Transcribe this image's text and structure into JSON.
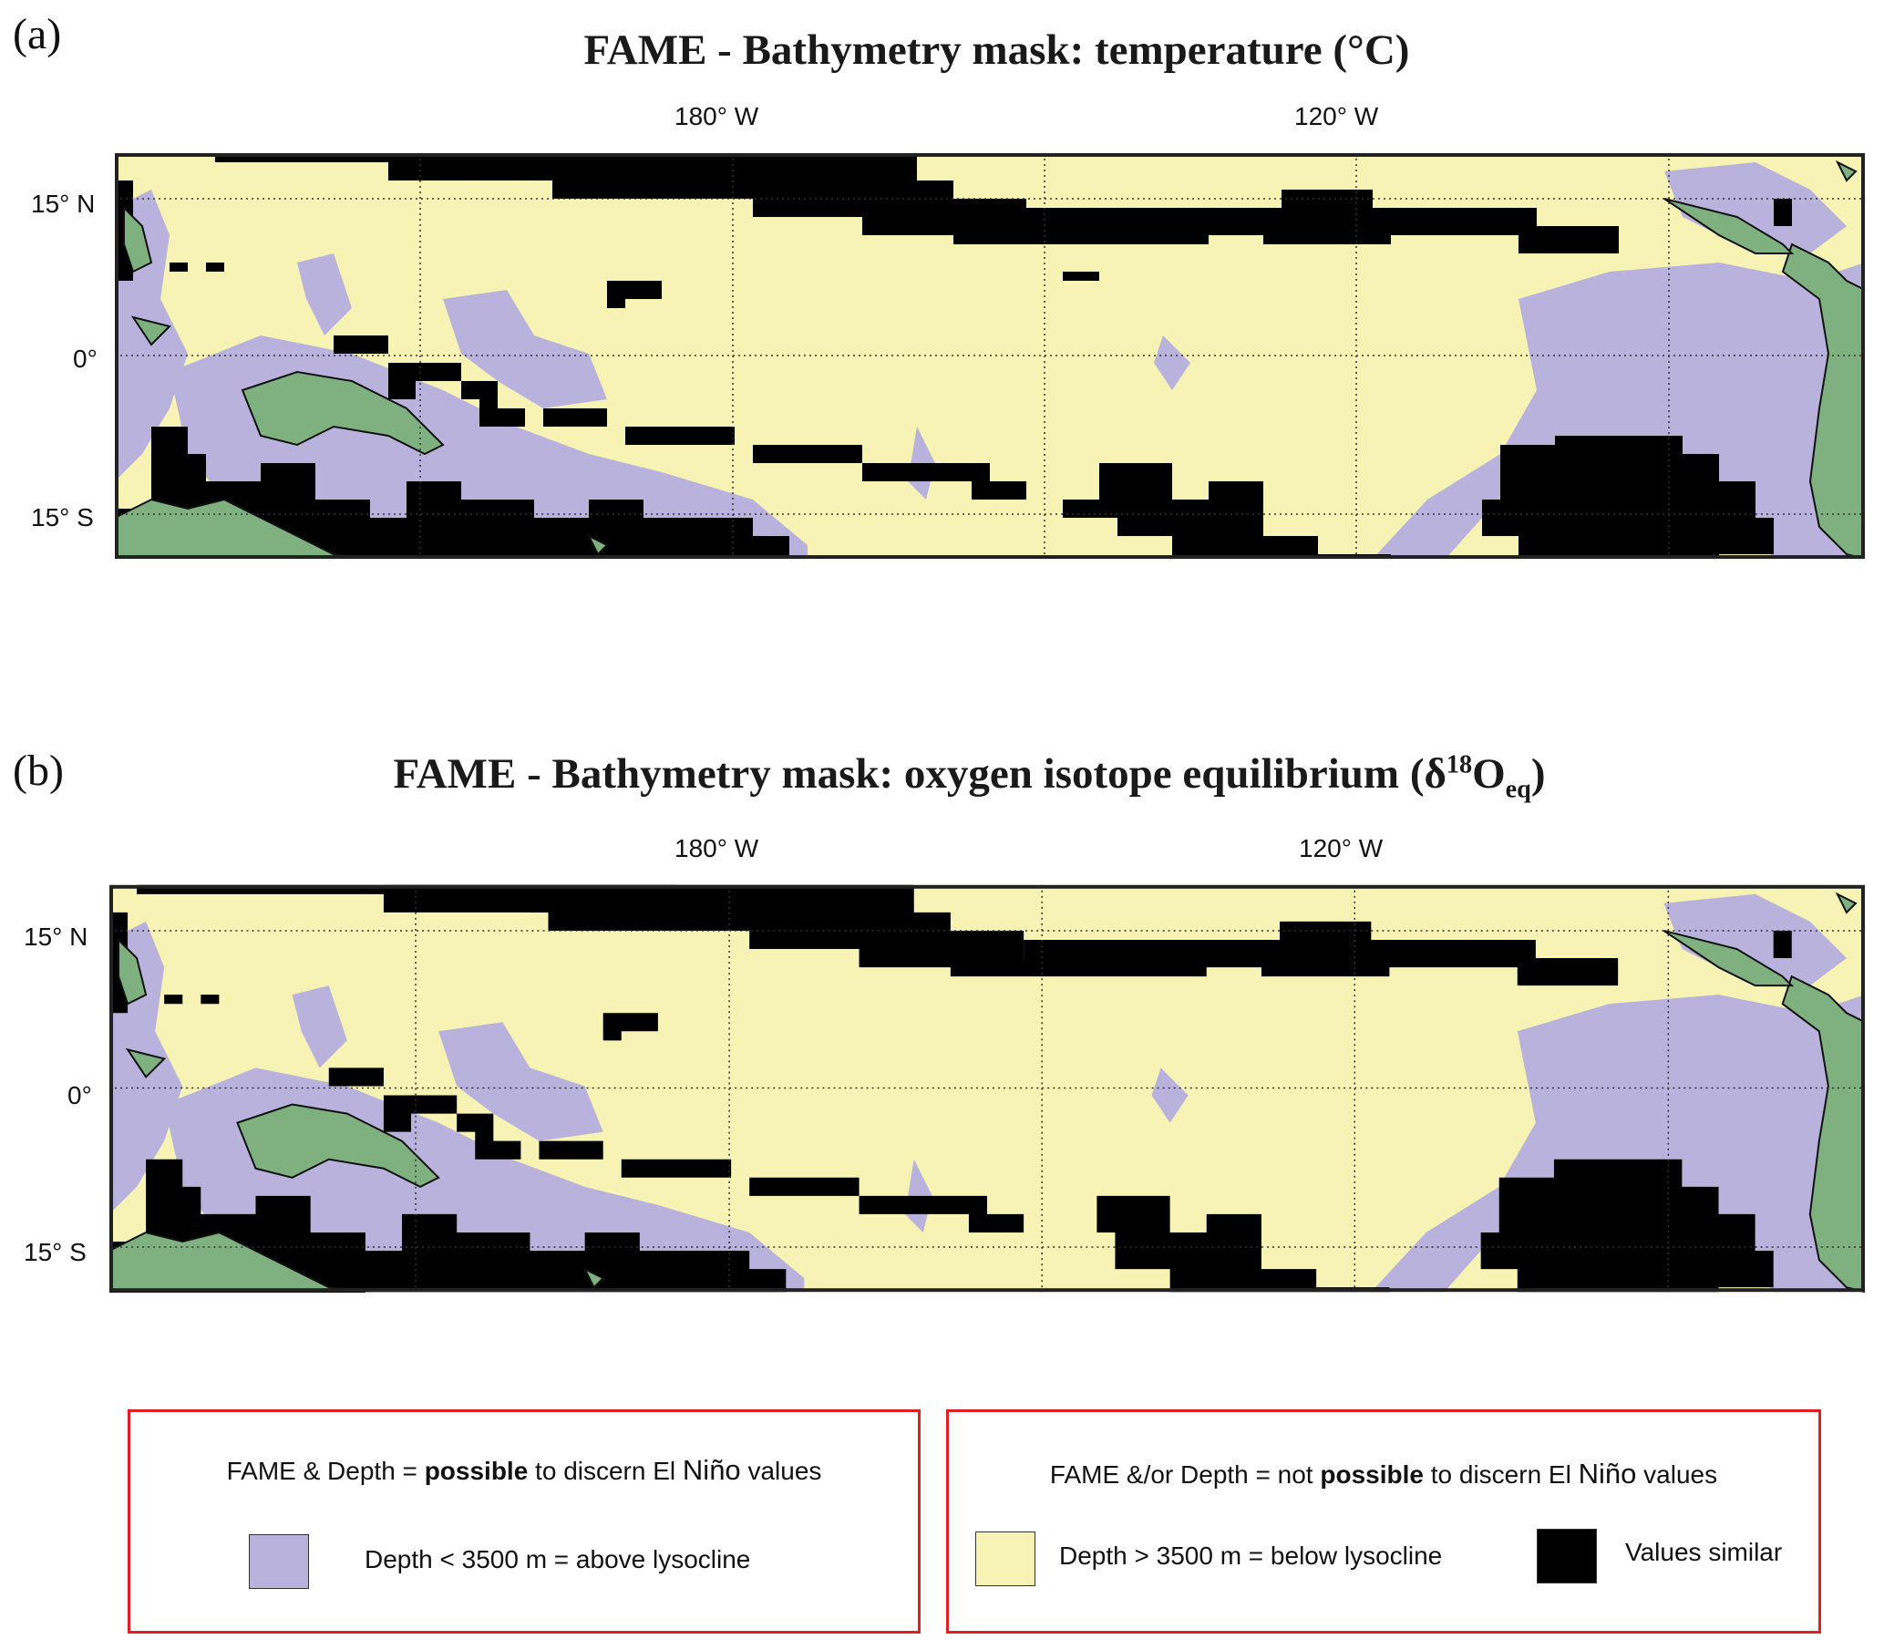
{
  "colors": {
    "land": "#7fb07f",
    "shallow": "#b9b2dc",
    "deep": "#f7f3b5",
    "similar": "#000000",
    "frame": "#222222",
    "legend_border": "#e02020"
  },
  "panels": [
    {
      "letter": "(a)",
      "title": "FAME - Bathymetry mask:  temperature (°C)",
      "lon_labels": [
        "180° W",
        "120° W"
      ],
      "lat_labels": [
        "15° N",
        "0°",
        "15° S"
      ]
    },
    {
      "letter": "(b)",
      "title_prefix": "FAME - Bathymetry mask:  oxygen isotope equilibrium (δ",
      "title_sup": "18",
      "title_mid": "O",
      "title_sub": "eq",
      "title_suffix": ")",
      "lon_labels": [
        "180° W",
        "120° W"
      ],
      "lat_labels": [
        "15° N",
        "0°",
        "15° S"
      ]
    }
  ],
  "legend": {
    "possible": {
      "heading_pre": "FAME & Depth  = ",
      "heading_bold": "possible",
      "heading_mid": " to discern El ",
      "heading_nino": "Niño",
      "heading_post": " values",
      "item": "Depth < 3500 m = above lysocline"
    },
    "not_possible": {
      "heading_pre": "FAME &/or Depth  = not ",
      "heading_bold": "possible",
      "heading_mid": " to discern El ",
      "heading_nino": "Niño",
      "heading_post": " values",
      "item_deep": "Depth > 3500 m = below lysocline",
      "item_similar": "Values similar"
    }
  }
}
